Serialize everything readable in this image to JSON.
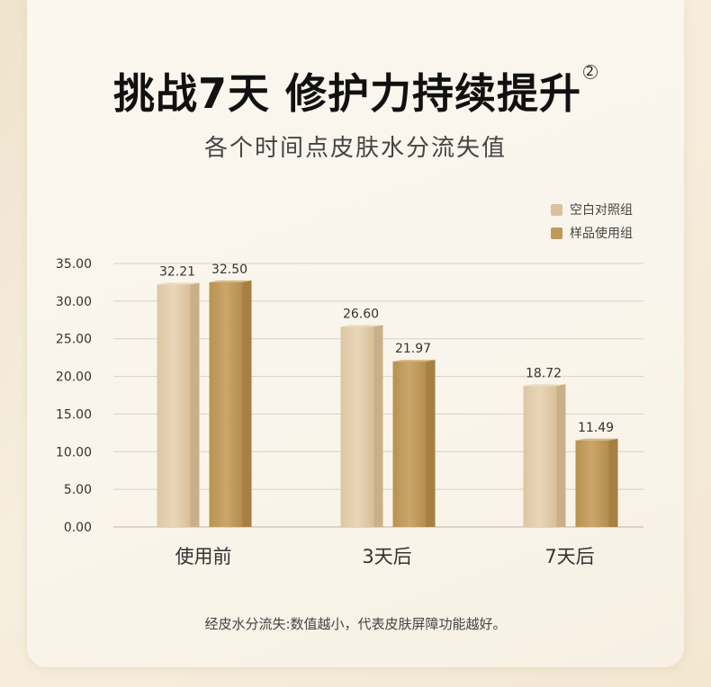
{
  "title": "挑战7天 修护力持续提升",
  "title_note": "2",
  "subtitle": "各个时间点皮肤水分流失值",
  "footnote": "经皮水分流失:数值越小，代表皮肤屏障功能越好。",
  "colors": {
    "control": "#d9c29c",
    "sample": "#bf9a5f"
  },
  "chart_data": {
    "type": "bar",
    "categories": [
      "使用前",
      "3天后",
      "7天后"
    ],
    "series": [
      {
        "name": "空白对照组",
        "values": [
          32.21,
          26.6,
          18.72
        ],
        "labels": [
          "32.21",
          "26.60",
          "18.72"
        ]
      },
      {
        "name": "样品使用组",
        "values": [
          32.5,
          21.97,
          11.49
        ],
        "labels": [
          "32.50",
          "21.97",
          "11.49"
        ]
      }
    ],
    "ylim": [
      0,
      35
    ],
    "yticks": [
      "0.00",
      "5.00",
      "10.00",
      "15.00",
      "20.00",
      "25.00",
      "30.00",
      "35.00"
    ],
    "legend": "top-right",
    "grid": true
  }
}
